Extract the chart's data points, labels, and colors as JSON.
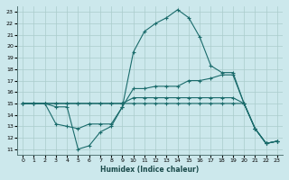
{
  "xlabel": "Humidex (Indice chaleur)",
  "bg_color": "#cce8ec",
  "grid_color": "#aacccc",
  "line_color": "#1a6b6b",
  "xlim": [
    -0.5,
    23.5
  ],
  "ylim": [
    10.5,
    23.5
  ],
  "xticks": [
    0,
    1,
    2,
    3,
    4,
    5,
    6,
    7,
    8,
    9,
    10,
    11,
    12,
    13,
    14,
    15,
    16,
    17,
    18,
    19,
    20,
    21,
    22,
    23
  ],
  "yticks": [
    11,
    12,
    13,
    14,
    15,
    16,
    17,
    18,
    19,
    20,
    21,
    22,
    23
  ],
  "lines": [
    {
      "x": [
        0,
        1,
        2,
        3,
        4,
        5,
        6,
        7,
        8,
        9,
        10,
        11,
        12,
        13,
        14,
        15,
        16,
        17,
        18,
        19,
        20,
        21,
        22,
        23
      ],
      "y": [
        15,
        15,
        15,
        14.7,
        14.7,
        11.0,
        11.3,
        12.5,
        13.0,
        14.7,
        19.5,
        21.3,
        22.0,
        22.5,
        23.2,
        22.5,
        20.8,
        18.3,
        17.7,
        17.7,
        15.0,
        12.8,
        11.5,
        11.7
      ]
    },
    {
      "x": [
        0,
        1,
        2,
        3,
        4,
        5,
        6,
        7,
        8,
        9,
        10,
        11,
        12,
        13,
        14,
        15,
        16,
        17,
        18,
        19,
        20,
        21,
        22,
        23
      ],
      "y": [
        15,
        15,
        15,
        13.2,
        13.0,
        12.8,
        13.2,
        13.2,
        13.2,
        14.7,
        16.3,
        16.3,
        16.5,
        16.5,
        16.5,
        17.0,
        17.0,
        17.2,
        17.5,
        17.5,
        15.0,
        12.8,
        11.5,
        11.7
      ]
    },
    {
      "x": [
        0,
        1,
        2,
        3,
        4,
        5,
        6,
        7,
        8,
        9,
        10,
        11,
        12,
        13,
        14,
        15,
        16,
        17,
        18,
        19,
        20,
        21,
        22,
        23
      ],
      "y": [
        15,
        15,
        15,
        15,
        15,
        15,
        15,
        15,
        15,
        15,
        15.5,
        15.5,
        15.5,
        15.5,
        15.5,
        15.5,
        15.5,
        15.5,
        15.5,
        15.5,
        15.0,
        12.8,
        11.5,
        11.7
      ]
    },
    {
      "x": [
        0,
        1,
        2,
        3,
        4,
        5,
        6,
        7,
        8,
        9,
        10,
        11,
        12,
        13,
        14,
        15,
        16,
        17,
        18,
        19,
        20,
        21,
        22,
        23
      ],
      "y": [
        15,
        15,
        15,
        15,
        15,
        15,
        15,
        15,
        15,
        15,
        15,
        15,
        15,
        15,
        15,
        15,
        15,
        15,
        15,
        15,
        15.0,
        12.8,
        11.5,
        11.7
      ]
    }
  ]
}
